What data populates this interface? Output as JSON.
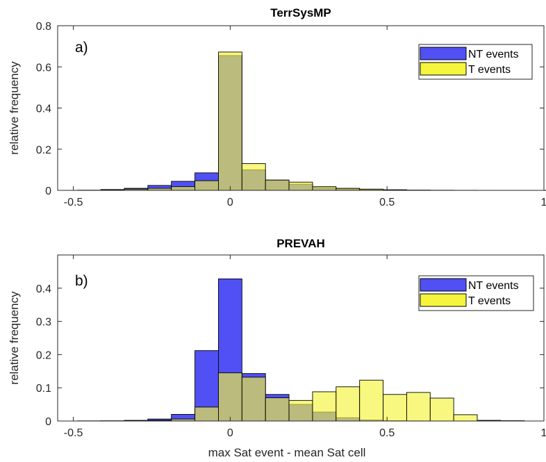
{
  "chart_data": [
    {
      "type": "bar",
      "title": "TerrSysMP",
      "panel_label": "a)",
      "xlabel": "",
      "ylabel": "relative frequency",
      "xlim": [
        -0.55,
        1.0
      ],
      "ylim": [
        0,
        0.8
      ],
      "xticks": [
        "-0.5",
        "0",
        "0.5",
        "1"
      ],
      "yticks": [
        "0",
        "0.2",
        "0.4",
        "0.6",
        "0.8"
      ],
      "bin_width": 0.075,
      "bin_centers": [
        -0.45,
        -0.375,
        -0.3,
        -0.225,
        -0.15,
        -0.075,
        0.0,
        0.075,
        0.15,
        0.225,
        0.3,
        0.375,
        0.45,
        0.525,
        0.6,
        0.675,
        0.75,
        0.825,
        0.9,
        0.975
      ],
      "legend_position": "top-right",
      "series": [
        {
          "name": "NT events",
          "color": "#5050f5",
          "values": [
            0.001,
            0.004,
            0.01,
            0.024,
            0.044,
            0.085,
            0.655,
            0.1,
            0.05,
            0.03,
            0.013,
            0.007,
            0.004,
            0.002,
            0.001,
            0.0005,
            0.0003,
            0.0002,
            0.0001,
            0.0001
          ]
        },
        {
          "name": "T events",
          "color": "#f5f53c",
          "values": [
            0.0,
            0.002,
            0.006,
            0.01,
            0.018,
            0.047,
            0.672,
            0.13,
            0.05,
            0.04,
            0.018,
            0.01,
            0.006,
            0.003,
            0.001,
            0.0005,
            0.0003,
            0.0002,
            0.0001,
            0.0001
          ]
        }
      ]
    },
    {
      "type": "bar",
      "title": "PREVAH",
      "panel_label": "b)",
      "xlabel": "max Sat event - mean Sat cell",
      "ylabel": "relative frequency",
      "xlim": [
        -0.55,
        1.0
      ],
      "ylim": [
        0,
        0.5
      ],
      "xticks": [
        "-0.5",
        "0",
        "0.5",
        "1"
      ],
      "yticks": [
        "0",
        "0.1",
        "0.2",
        "0.3",
        "0.4"
      ],
      "bin_width": 0.075,
      "bin_centers": [
        -0.45,
        -0.375,
        -0.3,
        -0.225,
        -0.15,
        -0.075,
        0.0,
        0.075,
        0.15,
        0.225,
        0.3,
        0.375,
        0.45,
        0.525,
        0.6,
        0.675,
        0.75,
        0.825,
        0.9,
        0.975
      ],
      "legend_position": "top-right",
      "series": [
        {
          "name": "NT events",
          "color": "#5050f5",
          "values": [
            0.0005,
            0.0008,
            0.002,
            0.006,
            0.02,
            0.212,
            0.428,
            0.143,
            0.08,
            0.05,
            0.027,
            0.01,
            0.003,
            0.001,
            0.0005,
            0.0003,
            0.0002,
            0.0001,
            0.0001,
            0.0
          ]
        },
        {
          "name": "T events",
          "color": "#f5f53c",
          "values": [
            0.0,
            0.0,
            0.001,
            0.002,
            0.006,
            0.042,
            0.145,
            0.132,
            0.07,
            0.062,
            0.088,
            0.103,
            0.123,
            0.08,
            0.086,
            0.069,
            0.019,
            0.002,
            0.001,
            0.0
          ]
        }
      ]
    }
  ]
}
